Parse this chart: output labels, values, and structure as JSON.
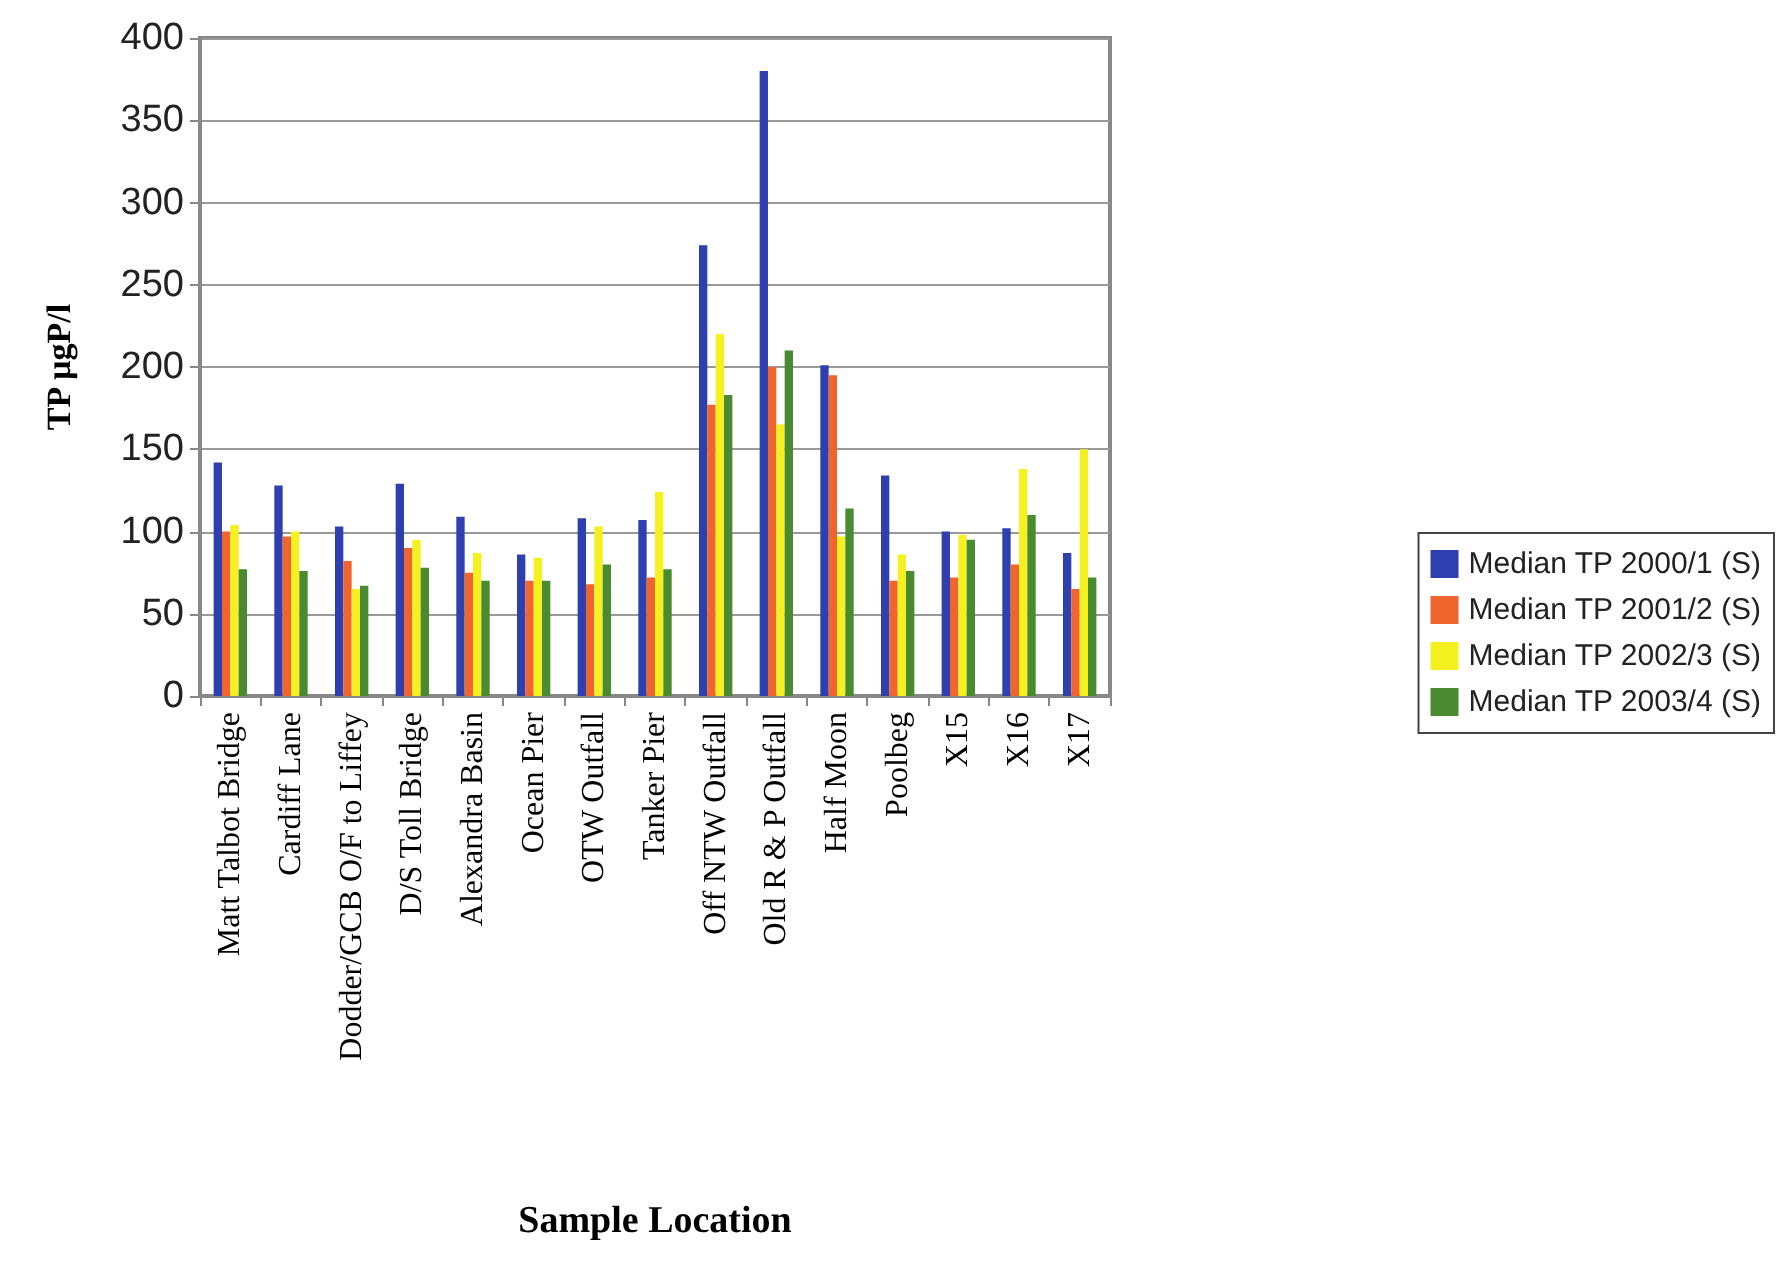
{
  "chart_data": {
    "type": "bar",
    "xlabel": "Sample Location",
    "ylabel": "TP µgP/l",
    "categories": [
      "Matt Talbot Bridge",
      "Cardiff Lane",
      "Dodder/GCB O/F to Liffey",
      "D/S Toll Bridge",
      "Alexandra Basin",
      "Ocean Pier",
      "OTW Outfall",
      "Tanker Pier",
      "Off NTW Outfall",
      "Old R & P Outfall",
      "Half Moon",
      "Poolbeg",
      "X15",
      "X16",
      "X17"
    ],
    "series": [
      {
        "name": "Median TP 2000/1 (S)",
        "color": "#2e3fb0",
        "values": [
          142,
          128,
          103,
          129,
          109,
          86,
          108,
          107,
          274,
          380,
          201,
          134,
          100,
          102,
          87
        ]
      },
      {
        "name": "Median TP 2001/2 (S)",
        "color": "#f0642e",
        "values": [
          100,
          97,
          82,
          90,
          75,
          70,
          68,
          72,
          177,
          200,
          195,
          70,
          72,
          80,
          65
        ]
      },
      {
        "name": "Median TP 2002/3 (S)",
        "color": "#f5f020",
        "values": [
          104,
          100,
          65,
          95,
          87,
          84,
          103,
          124,
          220,
          165,
          97,
          86,
          98,
          138,
          150
        ]
      },
      {
        "name": "Median TP 2003/4 (S)",
        "color": "#4a8a30",
        "values": [
          77,
          76,
          67,
          78,
          70,
          70,
          80,
          77,
          183,
          210,
          114,
          76,
          95,
          110,
          72
        ]
      }
    ],
    "ylim": [
      0,
      400
    ],
    "yticks": [
      0,
      50,
      100,
      150,
      200,
      250,
      300,
      350,
      400
    ],
    "grid": "y",
    "legend": "right"
  }
}
